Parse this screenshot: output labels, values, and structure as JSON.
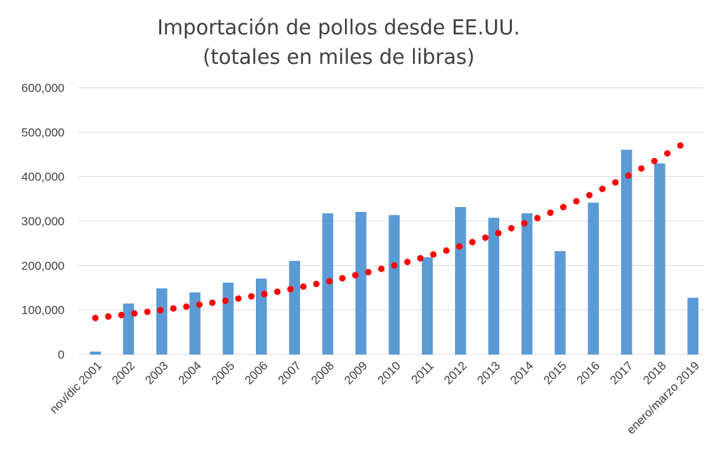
{
  "chart_data": {
    "type": "bar",
    "title": "Importación de pollos desde EE.UU.",
    "subtitle": "(totales en  miles de libras)",
    "xlabel": "",
    "ylabel": "",
    "ylim": [
      0,
      600000
    ],
    "yticks": [
      "0",
      "100,000",
      "200,000",
      "300,000",
      "400,000",
      "500,000",
      "600,000"
    ],
    "grid": true,
    "legend": "none",
    "bar_color": "#5b9bd5",
    "trend_color": "#ff0000",
    "categories": [
      "nov/dic 2001",
      "2002",
      "2003",
      "2004",
      "2005",
      "2006",
      "2007",
      "2008",
      "2009",
      "2010",
      "2011",
      "2012",
      "2013",
      "2014",
      "2015",
      "2016",
      "2017",
      "2018",
      "enero/marzo 2019"
    ],
    "series": [
      {
        "values": [
          6000,
          114000,
          148000,
          139000,
          161000,
          170000,
          210000,
          317000,
          320000,
          313000,
          218000,
          331000,
          307000,
          317000,
          232000,
          341000,
          460000,
          429000,
          127000
        ]
      }
    ],
    "trendline": {
      "type": "exponential",
      "start": 82000,
      "end": 470000
    }
  }
}
